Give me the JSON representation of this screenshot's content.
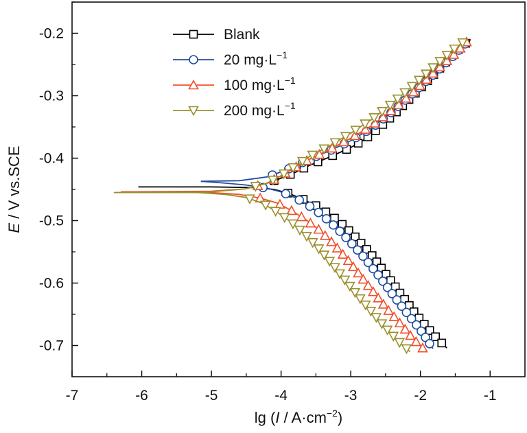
{
  "chart_data": {
    "type": "line",
    "title": "",
    "xlabel": {
      "prefix": "lg (",
      "var": "I",
      "rest": " / A·cm",
      "sup": "−2",
      "suffix": ")"
    },
    "ylabel": {
      "var": "E",
      "rest": " / V vs.SCE"
    },
    "xlim": [
      -7,
      -0.5
    ],
    "ylim": [
      -0.75,
      -0.15
    ],
    "xticks": [
      -7,
      -6,
      -5,
      -4,
      -3,
      -2,
      -1
    ],
    "yticks": [
      -0.2,
      -0.3,
      -0.4,
      -0.5,
      -0.6,
      -0.7
    ],
    "xtick_labels": [
      "-7",
      "-6",
      "-5",
      "-4",
      "-3",
      "-2",
      "-1"
    ],
    "ytick_labels": [
      "-0.2",
      "-0.3",
      "-0.4",
      "-0.5",
      "-0.6",
      "-0.7"
    ],
    "grid": false,
    "legend_position": "top-left",
    "series": [
      {
        "name": "Blank",
        "name_sup": "",
        "color": "#000000",
        "marker": "square",
        "ecorr": -0.446,
        "anodic": [
          [
            -4.35,
            -0.446
          ],
          [
            -4.2,
            -0.44
          ],
          [
            -4.0,
            -0.432
          ],
          [
            -3.8,
            -0.423
          ],
          [
            -3.6,
            -0.412
          ],
          [
            -3.3,
            -0.398
          ],
          [
            -3.0,
            -0.383
          ],
          [
            -2.8,
            -0.37
          ],
          [
            -2.6,
            -0.352
          ],
          [
            -2.4,
            -0.332
          ],
          [
            -2.2,
            -0.31
          ],
          [
            -2.0,
            -0.288
          ],
          [
            -1.8,
            -0.265
          ],
          [
            -1.6,
            -0.242
          ],
          [
            -1.42,
            -0.222
          ],
          [
            -1.28,
            -0.21
          ]
        ],
        "cathodic": [
          [
            -6.05,
            -0.446
          ],
          [
            -5.0,
            -0.446
          ],
          [
            -4.4,
            -0.447
          ],
          [
            -4.1,
            -0.45
          ],
          [
            -3.9,
            -0.456
          ],
          [
            -3.7,
            -0.465
          ],
          [
            -3.5,
            -0.476
          ],
          [
            -3.3,
            -0.49
          ],
          [
            -3.1,
            -0.508
          ],
          [
            -2.9,
            -0.53
          ],
          [
            -2.7,
            -0.555
          ],
          [
            -2.5,
            -0.585
          ],
          [
            -2.3,
            -0.615
          ],
          [
            -2.1,
            -0.645
          ],
          [
            -1.9,
            -0.672
          ],
          [
            -1.75,
            -0.69
          ],
          [
            -1.62,
            -0.704
          ]
        ]
      },
      {
        "name": "20 mg·L",
        "name_sup": "−1",
        "color": "#1f4e9e",
        "marker": "circle",
        "ecorr": -0.437,
        "anodic": [
          [
            -5.15,
            -0.437
          ],
          [
            -4.6,
            -0.436
          ],
          [
            -4.2,
            -0.43
          ],
          [
            -4.0,
            -0.422
          ],
          [
            -3.8,
            -0.413
          ],
          [
            -3.6,
            -0.402
          ],
          [
            -3.3,
            -0.388
          ],
          [
            -3.0,
            -0.372
          ],
          [
            -2.7,
            -0.352
          ],
          [
            -2.4,
            -0.325
          ],
          [
            -2.1,
            -0.295
          ],
          [
            -1.8,
            -0.265
          ],
          [
            -1.5,
            -0.233
          ],
          [
            -1.3,
            -0.21
          ]
        ],
        "cathodic": [
          [
            -5.15,
            -0.437
          ],
          [
            -4.8,
            -0.44
          ],
          [
            -4.5,
            -0.443
          ],
          [
            -4.2,
            -0.448
          ],
          [
            -4.0,
            -0.454
          ],
          [
            -3.8,
            -0.463
          ],
          [
            -3.6,
            -0.476
          ],
          [
            -3.4,
            -0.492
          ],
          [
            -3.2,
            -0.512
          ],
          [
            -3.0,
            -0.535
          ],
          [
            -2.8,
            -0.56
          ],
          [
            -2.6,
            -0.588
          ],
          [
            -2.4,
            -0.618
          ],
          [
            -2.2,
            -0.647
          ],
          [
            -2.0,
            -0.675
          ],
          [
            -1.82,
            -0.705
          ]
        ]
      },
      {
        "name": "100 mg·L",
        "name_sup": "−1",
        "color": "#f04e2a",
        "marker": "triangle-up",
        "ecorr": -0.454,
        "anodic": [
          [
            -6.3,
            -0.454
          ],
          [
            -5.0,
            -0.453
          ],
          [
            -4.5,
            -0.449
          ],
          [
            -4.2,
            -0.44
          ],
          [
            -4.0,
            -0.428
          ],
          [
            -3.8,
            -0.415
          ],
          [
            -3.6,
            -0.402
          ],
          [
            -3.3,
            -0.386
          ],
          [
            -3.0,
            -0.368
          ],
          [
            -2.7,
            -0.348
          ],
          [
            -2.4,
            -0.322
          ],
          [
            -2.1,
            -0.294
          ],
          [
            -1.8,
            -0.262
          ],
          [
            -1.5,
            -0.232
          ],
          [
            -1.32,
            -0.212
          ]
        ],
        "cathodic": [
          [
            -6.3,
            -0.454
          ],
          [
            -5.0,
            -0.455
          ],
          [
            -4.6,
            -0.458
          ],
          [
            -4.3,
            -0.464
          ],
          [
            -4.05,
            -0.472
          ],
          [
            -3.85,
            -0.484
          ],
          [
            -3.65,
            -0.498
          ],
          [
            -3.45,
            -0.515
          ],
          [
            -3.25,
            -0.537
          ],
          [
            -3.05,
            -0.562
          ],
          [
            -2.85,
            -0.59
          ],
          [
            -2.65,
            -0.618
          ],
          [
            -2.45,
            -0.645
          ],
          [
            -2.25,
            -0.67
          ],
          [
            -2.1,
            -0.69
          ],
          [
            -1.93,
            -0.708
          ]
        ]
      },
      {
        "name": "200 mg·L",
        "name_sup": "−1",
        "color": "#9a8f2c",
        "marker": "triangle-down",
        "ecorr": -0.455,
        "anodic": [
          [
            -6.4,
            -0.455
          ],
          [
            -5.0,
            -0.454
          ],
          [
            -4.5,
            -0.449
          ],
          [
            -4.2,
            -0.44
          ],
          [
            -4.0,
            -0.428
          ],
          [
            -3.8,
            -0.413
          ],
          [
            -3.6,
            -0.398
          ],
          [
            -3.3,
            -0.38
          ],
          [
            -3.0,
            -0.36
          ],
          [
            -2.7,
            -0.338
          ],
          [
            -2.4,
            -0.312
          ],
          [
            -2.1,
            -0.283
          ],
          [
            -1.8,
            -0.253
          ],
          [
            -1.55,
            -0.228
          ],
          [
            -1.36,
            -0.212
          ]
        ],
        "cathodic": [
          [
            -6.4,
            -0.455
          ],
          [
            -5.2,
            -0.455
          ],
          [
            -4.8,
            -0.458
          ],
          [
            -4.5,
            -0.463
          ],
          [
            -4.25,
            -0.473
          ],
          [
            -4.05,
            -0.487
          ],
          [
            -3.85,
            -0.503
          ],
          [
            -3.65,
            -0.523
          ],
          [
            -3.45,
            -0.546
          ],
          [
            -3.25,
            -0.572
          ],
          [
            -3.05,
            -0.6
          ],
          [
            -2.85,
            -0.627
          ],
          [
            -2.65,
            -0.653
          ],
          [
            -2.45,
            -0.678
          ],
          [
            -2.3,
            -0.695
          ],
          [
            -2.15,
            -0.71
          ]
        ]
      }
    ]
  }
}
